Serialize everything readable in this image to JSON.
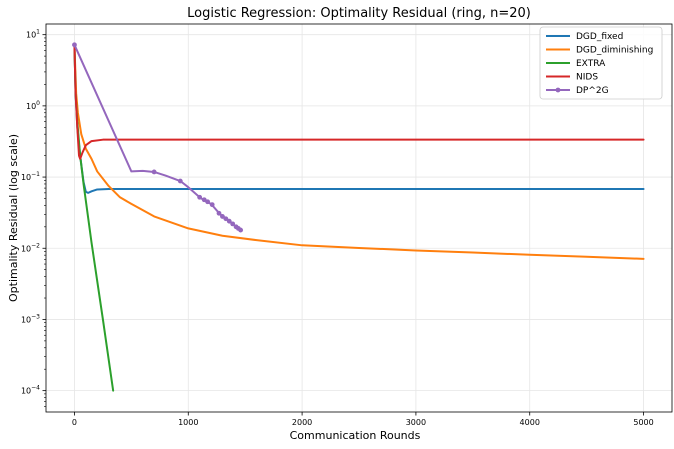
{
  "chart_data": {
    "type": "line",
    "title": "Logistic Regression: Optimality Residual (ring, n=20)",
    "xlabel": "Communication Rounds",
    "ylabel": "Optimality Residual (log scale)",
    "yscale": "log",
    "xlim": [
      -250,
      5250
    ],
    "ylim_log10": [
      -4.3,
      1.15
    ],
    "xticks": [
      0,
      1000,
      2000,
      3000,
      4000,
      5000
    ],
    "yticks": [
      {
        "exp": -4,
        "base": "10",
        "sup": "−4"
      },
      {
        "exp": -3,
        "base": "10",
        "sup": "−3"
      },
      {
        "exp": -2,
        "base": "10",
        "sup": "−2"
      },
      {
        "exp": -1,
        "base": "10",
        "sup": "−1"
      },
      {
        "exp": 0,
        "base": "10",
        "sup": "0"
      },
      {
        "exp": 1,
        "base": "10",
        "sup": "1"
      }
    ],
    "grid": true,
    "legend_position": "top-right",
    "series": [
      {
        "name": "DGD_fixed",
        "color": "#1f77b4",
        "markers": false,
        "points": [
          [
            0,
            7.0
          ],
          [
            10,
            1.5
          ],
          [
            25,
            0.5
          ],
          [
            50,
            0.2
          ],
          [
            80,
            0.085
          ],
          [
            100,
            0.062
          ],
          [
            120,
            0.06
          ],
          [
            150,
            0.063
          ],
          [
            200,
            0.067
          ],
          [
            300,
            0.068
          ],
          [
            1000,
            0.068
          ],
          [
            5000,
            0.068
          ]
        ]
      },
      {
        "name": "DGD_diminishing",
        "color": "#ff7f0e",
        "markers": false,
        "points": [
          [
            0,
            7.0
          ],
          [
            15,
            1.5
          ],
          [
            30,
            0.8
          ],
          [
            60,
            0.4
          ],
          [
            100,
            0.25
          ],
          [
            150,
            0.18
          ],
          [
            200,
            0.12
          ],
          [
            300,
            0.075
          ],
          [
            400,
            0.052
          ],
          [
            500,
            0.042
          ],
          [
            700,
            0.028
          ],
          [
            1000,
            0.019
          ],
          [
            1300,
            0.015
          ],
          [
            1600,
            0.013
          ],
          [
            2000,
            0.011
          ],
          [
            2500,
            0.0101
          ],
          [
            3000,
            0.0093
          ],
          [
            3500,
            0.0087
          ],
          [
            4000,
            0.0081
          ],
          [
            4500,
            0.0076
          ],
          [
            5000,
            0.0071
          ]
        ]
      },
      {
        "name": "EXTRA",
        "color": "#2ca02c",
        "markers": false,
        "points": [
          [
            0,
            7.0
          ],
          [
            10,
            1.5
          ],
          [
            25,
            0.6
          ],
          [
            50,
            0.2
          ],
          [
            80,
            0.08
          ],
          [
            150,
            0.012
          ],
          [
            250,
            0.001
          ],
          [
            340,
            0.0001
          ]
        ]
      },
      {
        "name": "NIDS",
        "color": "#d62728",
        "markers": false,
        "points": [
          [
            0,
            7.0
          ],
          [
            10,
            1.5
          ],
          [
            25,
            0.5
          ],
          [
            40,
            0.2
          ],
          [
            50,
            0.18
          ],
          [
            70,
            0.22
          ],
          [
            100,
            0.28
          ],
          [
            150,
            0.32
          ],
          [
            250,
            0.335
          ],
          [
            400,
            0.335
          ],
          [
            5000,
            0.335
          ]
        ]
      },
      {
        "name": "DP^2G",
        "color": "#9467bd",
        "markers": true,
        "points": [
          [
            0,
            7.2
          ],
          [
            500,
            0.12
          ],
          [
            600,
            0.122
          ],
          [
            700,
            0.118
          ],
          [
            800,
            0.105
          ],
          [
            930,
            0.088
          ],
          [
            1000,
            0.072
          ],
          [
            1100,
            0.052
          ],
          [
            1150,
            0.046
          ],
          [
            1200,
            0.042
          ],
          [
            1280,
            0.03
          ],
          [
            1350,
            0.025
          ],
          [
            1420,
            0.02
          ],
          [
            1460,
            0.018
          ]
        ],
        "marker_points": [
          [
            0,
            7.2
          ],
          [
            700,
            0.118
          ],
          [
            930,
            0.088
          ],
          [
            1100,
            0.052
          ],
          [
            1140,
            0.048
          ],
          [
            1170,
            0.045
          ],
          [
            1210,
            0.041
          ],
          [
            1270,
            0.031
          ],
          [
            1300,
            0.028
          ],
          [
            1330,
            0.026
          ],
          [
            1360,
            0.024
          ],
          [
            1390,
            0.022
          ],
          [
            1420,
            0.02
          ],
          [
            1440,
            0.019
          ],
          [
            1460,
            0.018
          ]
        ]
      }
    ]
  }
}
